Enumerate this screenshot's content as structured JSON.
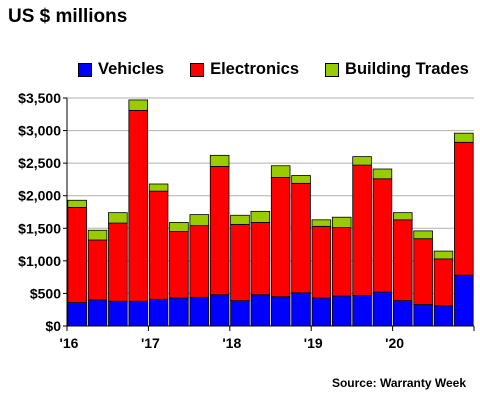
{
  "title": "US $ millions",
  "source": "Source: Warranty Week",
  "chart_data": {
    "type": "bar",
    "stacked": true,
    "categories": [
      "2016 Q1",
      "2016 Q2",
      "2016 Q3",
      "2016 Q4",
      "2017 Q1",
      "2017 Q2",
      "2017 Q3",
      "2017 Q4",
      "2018 Q1",
      "2018 Q2",
      "2018 Q3",
      "2018 Q4",
      "2019 Q1",
      "2019 Q2",
      "2019 Q3",
      "2019 Q4",
      "2020 Q1",
      "2020 Q2",
      "2020 Q3",
      "2020 Q4"
    ],
    "x_tick_labels": [
      {
        "label": "'16",
        "index": 0
      },
      {
        "label": "'17",
        "index": 4
      },
      {
        "label": "'18",
        "index": 8
      },
      {
        "label": "'19",
        "index": 12
      },
      {
        "label": "'20",
        "index": 16
      }
    ],
    "y_tick_labels": [
      "$0",
      "$500",
      "$1,000",
      "$1,500",
      "$2,000",
      "$2,500",
      "$3,000",
      "$3,500"
    ],
    "ylim": [
      0,
      3500
    ],
    "grid": true,
    "legend_position": "top",
    "series": [
      {
        "name": "Vehicles",
        "color": "#0000ff",
        "values": [
          360,
          400,
          380,
          380,
          410,
          430,
          440,
          480,
          390,
          480,
          450,
          510,
          430,
          460,
          470,
          520,
          390,
          330,
          310,
          780
        ]
      },
      {
        "name": "Electronics",
        "color": "#ff0000",
        "values": [
          1460,
          920,
          1200,
          2930,
          1660,
          1020,
          1100,
          1970,
          1170,
          1110,
          1830,
          1680,
          1100,
          1050,
          2000,
          1740,
          1240,
          1010,
          720,
          2040
        ]
      },
      {
        "name": "Building Trades",
        "color": "#99cc00",
        "values": [
          110,
          150,
          160,
          160,
          110,
          140,
          170,
          170,
          140,
          170,
          180,
          120,
          100,
          160,
          130,
          150,
          110,
          120,
          120,
          140
        ]
      }
    ]
  }
}
